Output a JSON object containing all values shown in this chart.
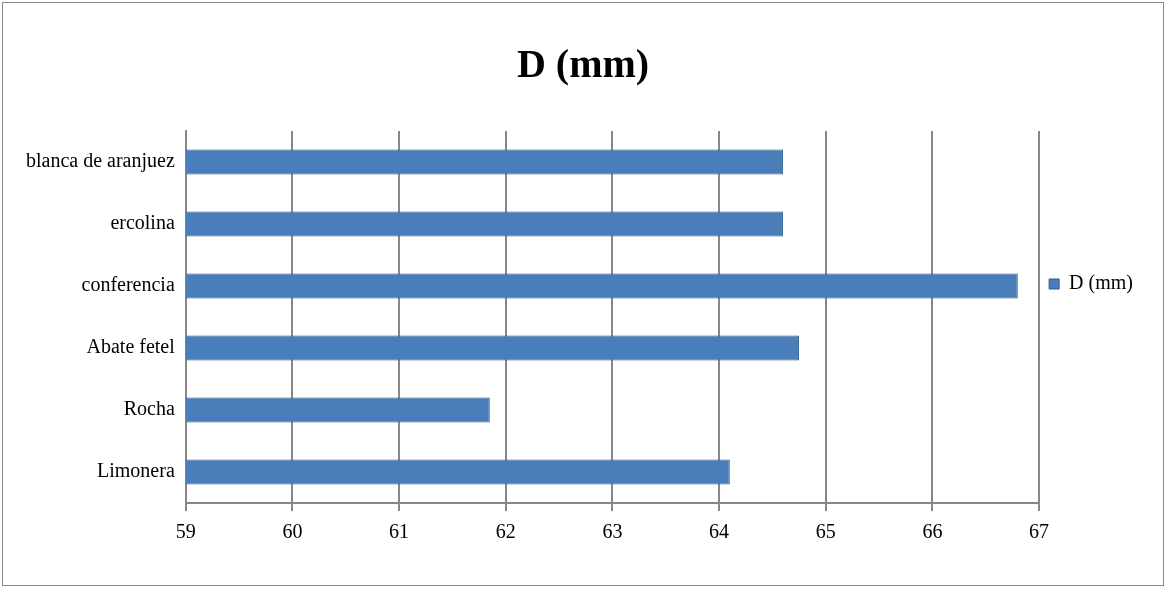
{
  "chart_data": {
    "type": "bar",
    "orientation": "horizontal",
    "title": "D (mm)",
    "categories": [
      "blanca de aranjuez",
      "ercolina",
      "conferencia",
      "Abate fetel",
      "Rocha",
      "Limonera"
    ],
    "series": [
      {
        "name": "D (mm)",
        "color": "#4a7ebb",
        "values": [
          64.6,
          64.6,
          66.8,
          64.75,
          61.85,
          64.1
        ]
      }
    ],
    "xlim": [
      59,
      67
    ],
    "xticks": [
      59,
      60,
      61,
      62,
      63,
      64,
      65,
      66,
      67
    ],
    "grid": "x",
    "legend": "right"
  }
}
